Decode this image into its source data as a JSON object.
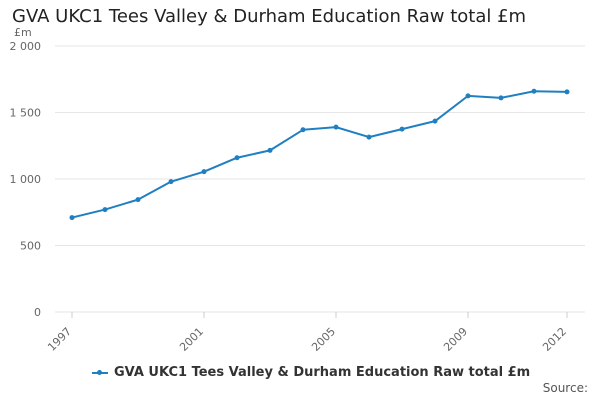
{
  "title": "GVA UKC1 Tees Valley & Durham Education Raw total £m",
  "source_label": "Source:",
  "colors": {
    "series": "#1f7fc1",
    "grid": "#e6e6e6",
    "axis_text": "#666666"
  },
  "chart_data": {
    "type": "line",
    "title": "GVA UKC1 Tees Valley & Durham Education Raw total £m",
    "ylabel": "£m",
    "xlabel": "",
    "ylim": [
      0,
      2000
    ],
    "yticks": [
      0,
      500,
      1000,
      1500,
      2000
    ],
    "ytick_labels": [
      "0",
      "500",
      "1 000",
      "1 500",
      "2 000"
    ],
    "xlim": [
      1997,
      2012
    ],
    "xticks": [
      1997,
      2001,
      2005,
      2009,
      2012
    ],
    "xtick_labels": [
      "1997",
      "2001",
      "2005",
      "2009",
      "2012"
    ],
    "grid": true,
    "legend_position": "bottom",
    "x": [
      1997,
      1998,
      1999,
      2000,
      2001,
      2002,
      2003,
      2004,
      2005,
      2006,
      2007,
      2008,
      2009,
      2010,
      2011,
      2012
    ],
    "series": [
      {
        "name": "GVA UKC1 Tees Valley & Durham Education Raw total £m",
        "values": [
          710,
          770,
          845,
          980,
          1055,
          1160,
          1215,
          1370,
          1390,
          1315,
          1375,
          1435,
          1625,
          1610,
          1660,
          1655
        ]
      }
    ]
  }
}
